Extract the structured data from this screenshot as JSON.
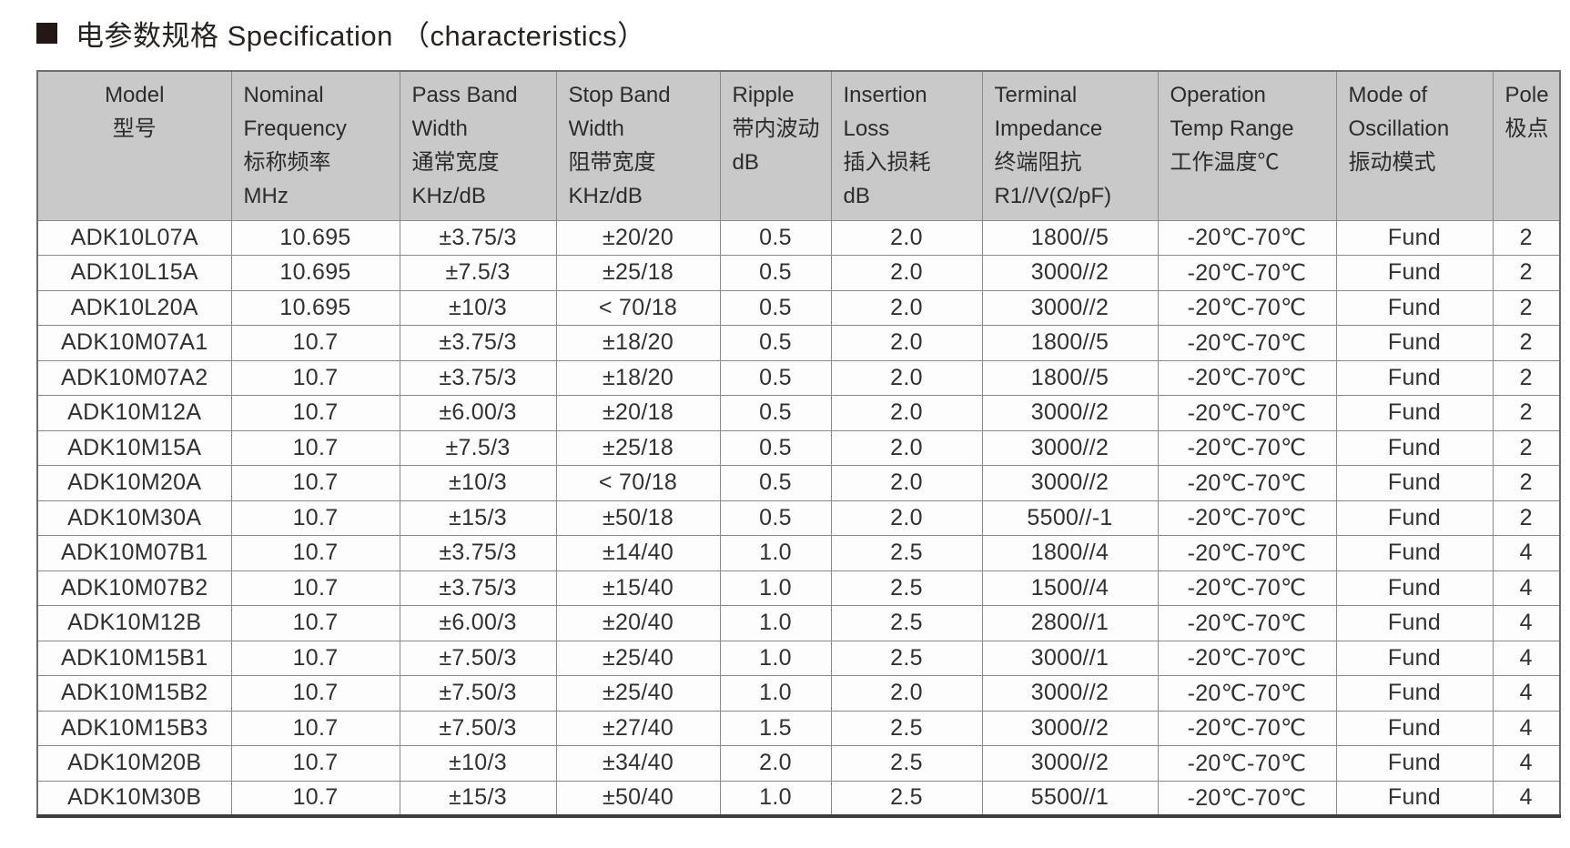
{
  "page": {
    "title": "电参数规格 Specification （characteristics）",
    "bullet_icon": "filled-square",
    "colors": {
      "header_bg": "#c9c9c9",
      "grid_border": "#8a8a8a",
      "heavy_border": "#3d3d3d",
      "text": "#2e2c2b",
      "bullet": "#231815"
    }
  },
  "table": {
    "columns": [
      {
        "id": "model",
        "align": "center",
        "lines": [
          "Model",
          "型号"
        ]
      },
      {
        "id": "nominal-frequency",
        "lines": [
          "Nominal",
          "Frequency",
          "标称频率",
          "MHz"
        ]
      },
      {
        "id": "pass-band-width",
        "lines": [
          "Pass Band",
          "Width",
          "通常宽度",
          "KHz/dB"
        ]
      },
      {
        "id": "stop-band-width",
        "lines": [
          "Stop Band",
          "Width",
          "阻带宽度",
          "KHz/dB"
        ]
      },
      {
        "id": "ripple",
        "lines": [
          "Ripple",
          "带内波动",
          "dB"
        ]
      },
      {
        "id": "insertion-loss",
        "lines": [
          "Insertion",
          "Loss",
          "插入损耗",
          "dB"
        ]
      },
      {
        "id": "terminal-impedance",
        "lines": [
          "Terminal",
          "Impedance",
          "终端阻抗",
          "R1//V(Ω/pF)"
        ]
      },
      {
        "id": "operation-temp-range",
        "lines": [
          "Operation",
          "Temp Range",
          "工作温度℃"
        ]
      },
      {
        "id": "mode-of-oscillation",
        "lines": [
          "Mode of",
          "Oscillation",
          "振动模式"
        ]
      },
      {
        "id": "pole",
        "lines": [
          "Pole",
          "极点"
        ]
      }
    ],
    "rows": [
      [
        "ADK10L07A",
        "10.695",
        "±3.75/3",
        "±20/20",
        "0.5",
        "2.0",
        "1800//5",
        "-20℃-70℃",
        "Fund",
        "2"
      ],
      [
        "ADK10L15A",
        "10.695",
        "±7.5/3",
        "±25/18",
        "0.5",
        "2.0",
        "3000//2",
        "-20℃-70℃",
        "Fund",
        "2"
      ],
      [
        "ADK10L20A",
        "10.695",
        "±10/3",
        "< 70/18",
        "0.5",
        "2.0",
        "3000//2",
        "-20℃-70℃",
        "Fund",
        "2"
      ],
      [
        "ADK10M07A1",
        "10.7",
        "±3.75/3",
        "±18/20",
        "0.5",
        "2.0",
        "1800//5",
        "-20℃-70℃",
        "Fund",
        "2"
      ],
      [
        "ADK10M07A2",
        "10.7",
        "±3.75/3",
        "±18/20",
        "0.5",
        "2.0",
        "1800//5",
        "-20℃-70℃",
        "Fund",
        "2"
      ],
      [
        "ADK10M12A",
        "10.7",
        "±6.00/3",
        "±20/18",
        "0.5",
        "2.0",
        "3000//2",
        "-20℃-70℃",
        "Fund",
        "2"
      ],
      [
        "ADK10M15A",
        "10.7",
        "±7.5/3",
        "±25/18",
        "0.5",
        "2.0",
        "3000//2",
        "-20℃-70℃",
        "Fund",
        "2"
      ],
      [
        "ADK10M20A",
        "10.7",
        "±10/3",
        "< 70/18",
        "0.5",
        "2.0",
        "3000//2",
        "-20℃-70℃",
        "Fund",
        "2"
      ],
      [
        "ADK10M30A",
        "10.7",
        "±15/3",
        "±50/18",
        "0.5",
        "2.0",
        "5500//-1",
        "-20℃-70℃",
        "Fund",
        "2"
      ],
      [
        "ADK10M07B1",
        "10.7",
        "±3.75/3",
        "±14/40",
        "1.0",
        "2.5",
        "1800//4",
        "-20℃-70℃",
        "Fund",
        "4"
      ],
      [
        "ADK10M07B2",
        "10.7",
        "±3.75/3",
        "±15/40",
        "1.0",
        "2.5",
        "1500//4",
        "-20℃-70℃",
        "Fund",
        "4"
      ],
      [
        "ADK10M12B",
        "10.7",
        "±6.00/3",
        "±20/40",
        "1.0",
        "2.5",
        "2800//1",
        "-20℃-70℃",
        "Fund",
        "4"
      ],
      [
        "ADK10M15B1",
        "10.7",
        "±7.50/3",
        "±25/40",
        "1.0",
        "2.5",
        "3000//1",
        "-20℃-70℃",
        "Fund",
        "4"
      ],
      [
        "ADK10M15B2",
        "10.7",
        "±7.50/3",
        "±25/40",
        "1.0",
        "2.0",
        "3000//2",
        "-20℃-70℃",
        "Fund",
        "4"
      ],
      [
        "ADK10M15B3",
        "10.7",
        "±7.50/3",
        "±27/40",
        "1.5",
        "2.5",
        "3000//2",
        "-20℃-70℃",
        "Fund",
        "4"
      ],
      [
        "ADK10M20B",
        "10.7",
        "±10/3",
        "±34/40",
        "2.0",
        "2.5",
        "3000//2",
        "-20℃-70℃",
        "Fund",
        "4"
      ],
      [
        "ADK10M30B",
        "10.7",
        "±15/3",
        "±50/40",
        "1.0",
        "2.5",
        "5500//1",
        "-20℃-70℃",
        "Fund",
        "4"
      ]
    ]
  }
}
